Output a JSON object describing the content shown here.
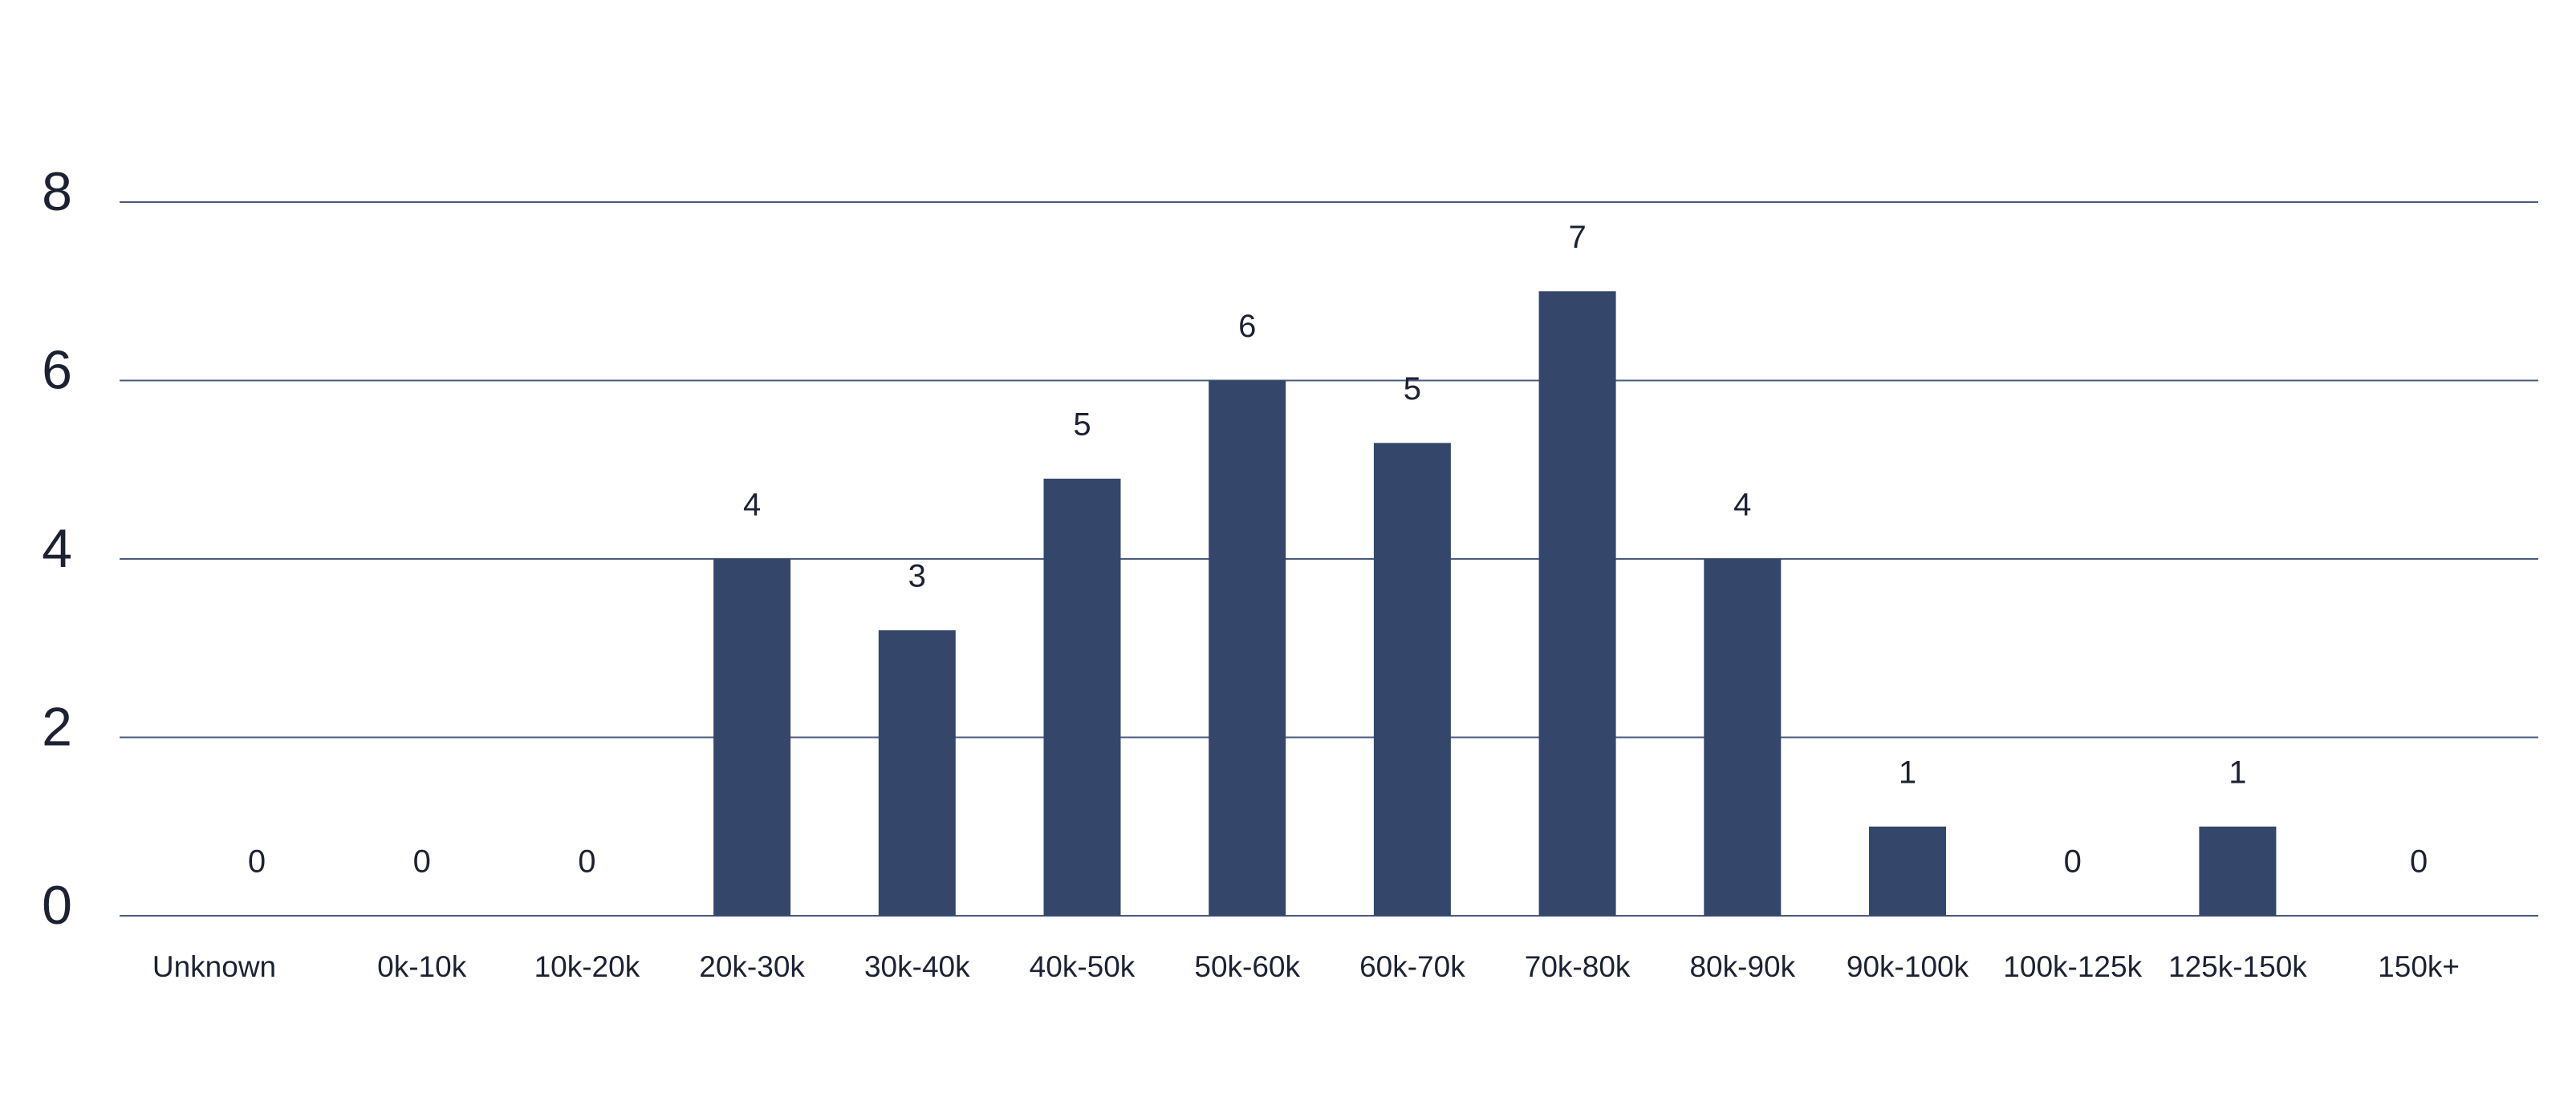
{
  "chart_data": {
    "type": "bar",
    "categories": [
      "Unknown",
      "0k-10k",
      "10k-20k",
      "20k-30k",
      "30k-40k",
      "40k-50k",
      "50k-60k",
      "60k-70k",
      "70k-80k",
      "80k-90k",
      "90k-100k",
      "100k-125k",
      "125k-150k",
      "150k+"
    ],
    "values": [
      0,
      0,
      0,
      4,
      3.2,
      4.9,
      6,
      5.3,
      7,
      4,
      1,
      0,
      1,
      0
    ],
    "value_labels": [
      "0",
      "0",
      "0",
      "4",
      "3",
      "5",
      "6",
      "5",
      "7",
      "4",
      "1",
      "0",
      "1",
      "0"
    ],
    "color": "#34476b",
    "ylim": [
      0,
      8
    ],
    "yticks": [
      0,
      2,
      4,
      6,
      8
    ],
    "grid": true
  }
}
